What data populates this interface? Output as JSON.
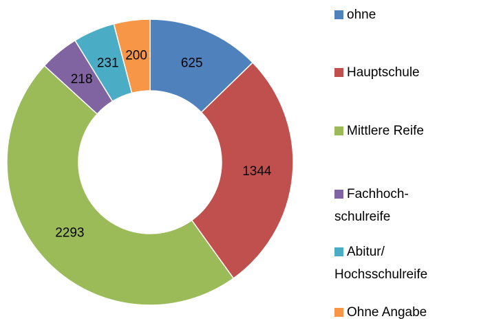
{
  "chart_data": {
    "type": "donut",
    "categories": [
      "ohne",
      "Hauptschule",
      "Mittlere Reife",
      "Fachhoch-\nschulreife",
      "Abitur/\nHochsschulreife",
      "Ohne Angabe"
    ],
    "values": [
      625,
      1344,
      2293,
      218,
      231,
      200
    ],
    "colors": [
      "#4f81bd",
      "#c0504d",
      "#9bbb59",
      "#8064a2",
      "#4bacc6",
      "#f79646"
    ],
    "legend": "right"
  }
}
